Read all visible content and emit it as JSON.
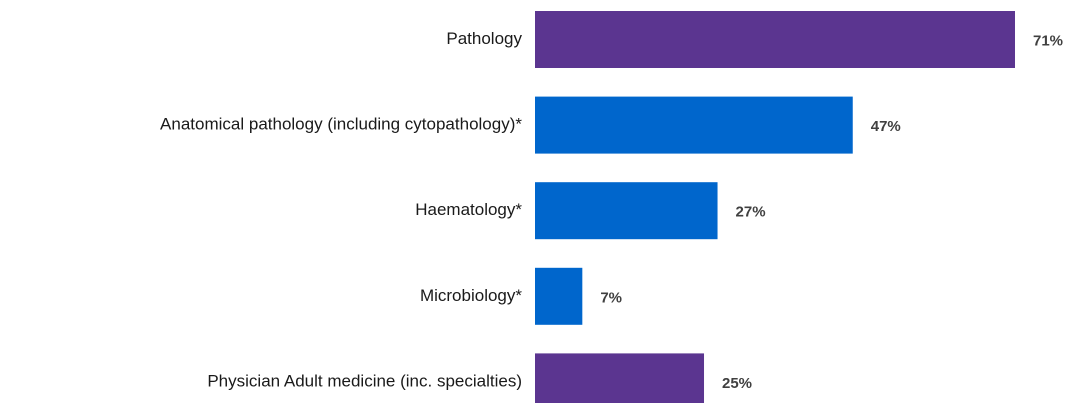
{
  "chart_data": {
    "type": "barh",
    "categories": [
      "Pathology",
      "Anatomical pathology (including cytopathology)*",
      "Haematology*",
      "Microbiology*",
      "Physician Adult medicine (inc. specialties)"
    ],
    "values": [
      71,
      47,
      27,
      7,
      25
    ],
    "value_labels": [
      "71%",
      "47%",
      "27%",
      "7%",
      "25%"
    ],
    "colors": [
      "#5b3590",
      "#0066cc",
      "#0066cc",
      "#0066cc",
      "#5b3590"
    ]
  }
}
